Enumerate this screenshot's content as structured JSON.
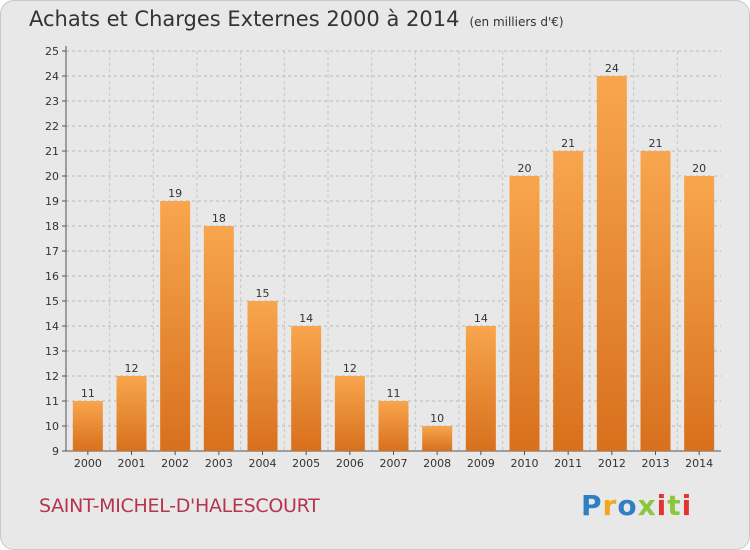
{
  "page": {
    "title": "Achats et Charges Externes 2000 à 2014",
    "unit": "(en milliers d'€)",
    "commune": "SAINT-MICHEL-D'HALESCOURT",
    "logo": "Proxiti"
  },
  "colors": {
    "bar_light": "#f8a64e",
    "bar_dark": "#d8701c",
    "commune": "#b5354f",
    "logo_letters": [
      "#2f7fc3",
      "#f0a81a",
      "#2f7fc3",
      "#8cc63f",
      "#e2352f",
      "#8cc63f",
      "#e2352f"
    ]
  },
  "chart_data": {
    "type": "bar",
    "categories": [
      "2000",
      "2001",
      "2002",
      "2003",
      "2004",
      "2005",
      "2006",
      "2007",
      "2008",
      "2009",
      "2010",
      "2011",
      "2012",
      "2013",
      "2014"
    ],
    "values": [
      11,
      12,
      19,
      18,
      15,
      14,
      12,
      11,
      10,
      14,
      20,
      21,
      24,
      21,
      20
    ],
    "ylim": [
      9,
      25
    ],
    "yticks": [
      9,
      10,
      11,
      12,
      13,
      14,
      15,
      16,
      17,
      18,
      19,
      20,
      21,
      22,
      23,
      24,
      25
    ],
    "grid": "horizontal dashed",
    "xlabel": "",
    "ylabel": ""
  }
}
